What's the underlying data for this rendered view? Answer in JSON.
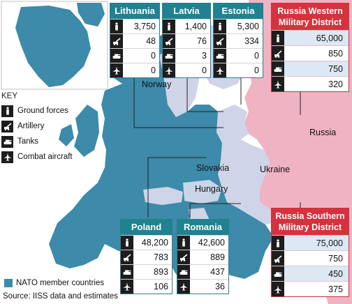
{
  "colors": {
    "nato": "#3d8aaa",
    "nonNato": "#d0d4e8",
    "russia": "#efb3c4",
    "sea": "#ffffff",
    "boxHeader": "#1f8290",
    "russiaHeader": "#d6323d"
  },
  "key": {
    "title": "KEY",
    "items": [
      {
        "icon": "ground-forces-icon",
        "label": "Ground forces"
      },
      {
        "icon": "artillery-icon",
        "label": "Artillery"
      },
      {
        "icon": "tanks-icon",
        "label": "Tanks"
      },
      {
        "icon": "combat-aircraft-icon",
        "label": "Combat aircraft"
      }
    ]
  },
  "labels": {
    "norway": "Norway",
    "russia": "Russia",
    "slovakia": "Slovakia",
    "ukraine": "Ukraine",
    "hungary": "Hungary"
  },
  "countries": {
    "lithuania": {
      "name": "Lithuania",
      "values": [
        "3,750",
        "48",
        "0",
        "0"
      ]
    },
    "latvia": {
      "name": "Latvia",
      "values": [
        "1,400",
        "76",
        "3",
        "0"
      ]
    },
    "estonia": {
      "name": "Estonia",
      "values": [
        "5,300",
        "334",
        "0",
        "0"
      ]
    },
    "poland": {
      "name": "Poland",
      "values": [
        "48,200",
        "783",
        "893",
        "106"
      ]
    },
    "romania": {
      "name": "Romania",
      "values": [
        "42,600",
        "889",
        "437",
        "36"
      ]
    }
  },
  "russia_western": {
    "title": "Russia Western Military District",
    "values": [
      "65,000",
      "850",
      "750",
      "320"
    ]
  },
  "russia_southern": {
    "title": "Russia Southern Military District",
    "values": [
      "75,000",
      "750",
      "450",
      "375"
    ]
  },
  "legend": {
    "label": "NATO member countries"
  },
  "source": "Source: IISS data and estimates"
}
